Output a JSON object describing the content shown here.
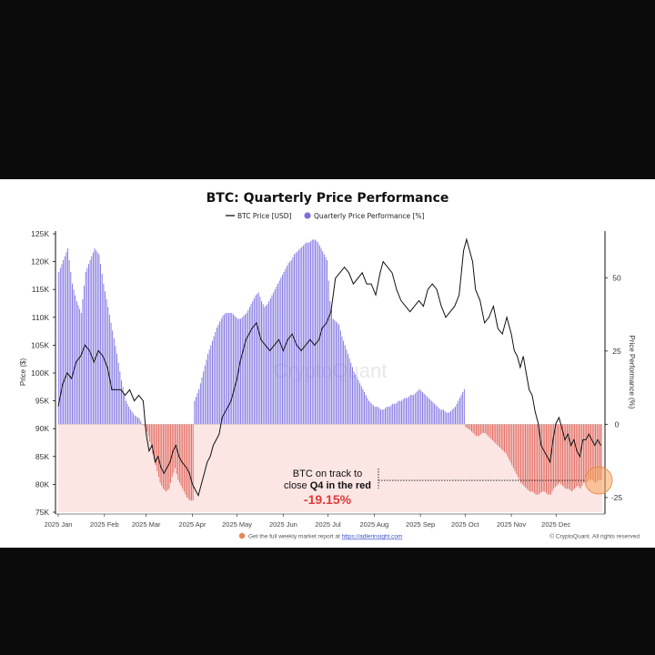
{
  "chart_data": {
    "type": "bar+line",
    "title": "BTC: Quarterly Price Performance",
    "legend": [
      {
        "label": "BTC Price [USD]",
        "kind": "line",
        "color": "#111111"
      },
      {
        "label": "Quarterly Price Performance [%]",
        "kind": "dot",
        "color": "#7b6fe0"
      }
    ],
    "legend_placement": "top-center",
    "ylabel_left": "Price ($)",
    "ylabel_right": "Price Performance (%)",
    "left_ticks": [
      "125K",
      "120K",
      "115K",
      "110K",
      "105K",
      "100K",
      "95K",
      "90K",
      "85K",
      "80K",
      "75K"
    ],
    "left_tick_values": [
      125,
      120,
      115,
      110,
      105,
      100,
      95,
      90,
      85,
      80,
      75
    ],
    "right_ticks": [
      "50",
      "25",
      "0",
      "-25"
    ],
    "right_tick_values": [
      50,
      25,
      0,
      -25
    ],
    "x_ticks": [
      "2025 Jan",
      "2025 Feb",
      "2025 Mar",
      "2025 Apr",
      "2025 May",
      "2025 Jun",
      "2025 Jul",
      "2025 Aug",
      "2025 Sep",
      "2025 Oct",
      "2025 Nov",
      "2025 Dec"
    ],
    "x_tick_days": [
      0,
      31,
      59,
      90,
      120,
      151,
      181,
      212,
      243,
      273,
      304,
      334
    ],
    "days_total": 365,
    "ylim_left": [
      75,
      125
    ],
    "ylim_right": [
      -30,
      65
    ],
    "price_keypoints": [
      [
        0,
        94
      ],
      [
        3,
        98
      ],
      [
        6,
        100
      ],
      [
        9,
        99
      ],
      [
        12,
        102
      ],
      [
        15,
        103
      ],
      [
        18,
        105
      ],
      [
        21,
        104
      ],
      [
        24,
        102
      ],
      [
        27,
        104
      ],
      [
        30,
        103
      ],
      [
        33,
        101
      ],
      [
        36,
        97
      ],
      [
        39,
        97
      ],
      [
        42,
        97
      ],
      [
        45,
        96
      ],
      [
        48,
        97
      ],
      [
        51,
        95
      ],
      [
        54,
        96
      ],
      [
        57,
        95
      ],
      [
        59,
        89
      ],
      [
        61,
        86
      ],
      [
        63,
        87
      ],
      [
        65,
        84
      ],
      [
        67,
        85
      ],
      [
        69,
        83
      ],
      [
        71,
        82
      ],
      [
        73,
        83
      ],
      [
        75,
        84
      ],
      [
        77,
        86
      ],
      [
        79,
        87
      ],
      [
        81,
        85
      ],
      [
        83,
        84
      ],
      [
        86,
        83
      ],
      [
        88,
        82
      ],
      [
        90,
        80
      ],
      [
        92,
        79
      ],
      [
        94,
        78
      ],
      [
        96,
        80
      ],
      [
        98,
        82
      ],
      [
        100,
        84
      ],
      [
        102,
        85
      ],
      [
        104,
        87
      ],
      [
        106,
        88
      ],
      [
        108,
        89
      ],
      [
        110,
        92
      ],
      [
        112,
        93
      ],
      [
        114,
        94
      ],
      [
        116,
        95
      ],
      [
        118,
        97
      ],
      [
        120,
        99
      ],
      [
        122,
        102
      ],
      [
        124,
        104
      ],
      [
        126,
        106
      ],
      [
        128,
        107
      ],
      [
        130,
        108
      ],
      [
        133,
        109
      ],
      [
        136,
        106
      ],
      [
        139,
        105
      ],
      [
        142,
        104
      ],
      [
        145,
        105
      ],
      [
        148,
        106
      ],
      [
        151,
        104
      ],
      [
        154,
        106
      ],
      [
        157,
        107
      ],
      [
        160,
        105
      ],
      [
        163,
        104
      ],
      [
        166,
        105
      ],
      [
        169,
        106
      ],
      [
        172,
        105
      ],
      [
        175,
        106
      ],
      [
        177,
        108
      ],
      [
        180,
        109
      ],
      [
        183,
        111
      ],
      [
        186,
        117
      ],
      [
        189,
        118
      ],
      [
        192,
        119
      ],
      [
        195,
        118
      ],
      [
        198,
        116
      ],
      [
        201,
        117
      ],
      [
        204,
        118
      ],
      [
        207,
        116
      ],
      [
        210,
        116
      ],
      [
        213,
        114
      ],
      [
        216,
        118
      ],
      [
        218,
        120
      ],
      [
        221,
        119
      ],
      [
        224,
        118
      ],
      [
        227,
        115
      ],
      [
        230,
        113
      ],
      [
        233,
        112
      ],
      [
        236,
        111
      ],
      [
        239,
        112
      ],
      [
        242,
        113
      ],
      [
        245,
        112
      ],
      [
        248,
        115
      ],
      [
        251,
        116
      ],
      [
        254,
        115
      ],
      [
        257,
        112
      ],
      [
        260,
        110
      ],
      [
        263,
        111
      ],
      [
        266,
        112
      ],
      [
        269,
        114
      ],
      [
        272,
        122
      ],
      [
        274,
        124
      ],
      [
        276,
        122
      ],
      [
        278,
        120
      ],
      [
        280,
        115
      ],
      [
        283,
        113
      ],
      [
        286,
        109
      ],
      [
        289,
        110
      ],
      [
        292,
        112
      ],
      [
        295,
        108
      ],
      [
        298,
        107
      ],
      [
        301,
        110
      ],
      [
        304,
        107
      ],
      [
        306,
        104
      ],
      [
        308,
        103
      ],
      [
        310,
        101
      ],
      [
        312,
        103
      ],
      [
        314,
        100
      ],
      [
        316,
        97
      ],
      [
        318,
        96
      ],
      [
        320,
        93
      ],
      [
        322,
        91
      ],
      [
        324,
        87
      ],
      [
        326,
        86
      ],
      [
        328,
        85
      ],
      [
        330,
        84
      ],
      [
        332,
        88
      ],
      [
        334,
        91
      ],
      [
        336,
        92
      ],
      [
        338,
        90
      ],
      [
        340,
        88
      ],
      [
        342,
        89
      ],
      [
        344,
        87
      ],
      [
        346,
        88
      ],
      [
        348,
        86
      ],
      [
        350,
        85
      ],
      [
        352,
        88
      ],
      [
        354,
        88
      ],
      [
        356,
        89
      ],
      [
        358,
        88
      ],
      [
        360,
        87
      ],
      [
        362,
        88
      ],
      [
        364,
        87
      ]
    ],
    "performance_keypoints": [
      [
        0,
        52
      ],
      [
        3,
        56
      ],
      [
        6,
        60
      ],
      [
        9,
        48
      ],
      [
        12,
        42
      ],
      [
        15,
        38
      ],
      [
        18,
        52
      ],
      [
        21,
        56
      ],
      [
        24,
        60
      ],
      [
        27,
        58
      ],
      [
        30,
        48
      ],
      [
        33,
        40
      ],
      [
        36,
        32
      ],
      [
        39,
        24
      ],
      [
        42,
        15
      ],
      [
        45,
        8
      ],
      [
        48,
        5
      ],
      [
        51,
        3
      ],
      [
        54,
        2
      ],
      [
        56,
        0
      ],
      [
        58,
        -1
      ],
      [
        60,
        -4
      ],
      [
        62,
        -8
      ],
      [
        64,
        -12
      ],
      [
        66,
        -16
      ],
      [
        68,
        -20
      ],
      [
        70,
        -22
      ],
      [
        72,
        -23
      ],
      [
        74,
        -22
      ],
      [
        76,
        -18
      ],
      [
        78,
        -15
      ],
      [
        80,
        -19
      ],
      [
        82,
        -21
      ],
      [
        84,
        -23
      ],
      [
        86,
        -25
      ],
      [
        88,
        -26
      ],
      [
        90,
        -26
      ],
      [
        91,
        8
      ],
      [
        94,
        12
      ],
      [
        96,
        16
      ],
      [
        98,
        20
      ],
      [
        100,
        24
      ],
      [
        102,
        27
      ],
      [
        104,
        30
      ],
      [
        106,
        33
      ],
      [
        108,
        35
      ],
      [
        110,
        37
      ],
      [
        112,
        38
      ],
      [
        114,
        38
      ],
      [
        116,
        38
      ],
      [
        118,
        37
      ],
      [
        120,
        36
      ],
      [
        122,
        36
      ],
      [
        124,
        37
      ],
      [
        126,
        38
      ],
      [
        128,
        40
      ],
      [
        130,
        42
      ],
      [
        132,
        44
      ],
      [
        134,
        45
      ],
      [
        136,
        42
      ],
      [
        138,
        40
      ],
      [
        140,
        41
      ],
      [
        142,
        43
      ],
      [
        144,
        45
      ],
      [
        146,
        47
      ],
      [
        148,
        49
      ],
      [
        150,
        51
      ],
      [
        152,
        53
      ],
      [
        154,
        55
      ],
      [
        156,
        56
      ],
      [
        158,
        58
      ],
      [
        160,
        59
      ],
      [
        162,
        60
      ],
      [
        164,
        61
      ],
      [
        166,
        62
      ],
      [
        168,
        62
      ],
      [
        170,
        63
      ],
      [
        172,
        63
      ],
      [
        174,
        62
      ],
      [
        176,
        60
      ],
      [
        178,
        58
      ],
      [
        180,
        56
      ],
      [
        182,
        42
      ],
      [
        184,
        36
      ],
      [
        186,
        35
      ],
      [
        188,
        34
      ],
      [
        190,
        30
      ],
      [
        192,
        27
      ],
      [
        194,
        24
      ],
      [
        196,
        21
      ],
      [
        198,
        18
      ],
      [
        200,
        16
      ],
      [
        202,
        14
      ],
      [
        204,
        12
      ],
      [
        206,
        10
      ],
      [
        208,
        8
      ],
      [
        210,
        7
      ],
      [
        212,
        6
      ],
      [
        214,
        6
      ],
      [
        216,
        5
      ],
      [
        218,
        5
      ],
      [
        220,
        6
      ],
      [
        222,
        6
      ],
      [
        224,
        7
      ],
      [
        226,
        7
      ],
      [
        228,
        8
      ],
      [
        230,
        8
      ],
      [
        232,
        9
      ],
      [
        234,
        9
      ],
      [
        236,
        10
      ],
      [
        238,
        10
      ],
      [
        240,
        11
      ],
      [
        242,
        12
      ],
      [
        244,
        11
      ],
      [
        246,
        10
      ],
      [
        248,
        9
      ],
      [
        250,
        8
      ],
      [
        252,
        7
      ],
      [
        254,
        6
      ],
      [
        256,
        5
      ],
      [
        258,
        5
      ],
      [
        260,
        4
      ],
      [
        262,
        4
      ],
      [
        264,
        5
      ],
      [
        266,
        6
      ],
      [
        268,
        8
      ],
      [
        270,
        10
      ],
      [
        272,
        12
      ],
      [
        273,
        -1
      ],
      [
        276,
        -2
      ],
      [
        278,
        -3
      ],
      [
        280,
        -4
      ],
      [
        282,
        -4
      ],
      [
        284,
        -3
      ],
      [
        286,
        -3
      ],
      [
        288,
        -4
      ],
      [
        290,
        -5
      ],
      [
        292,
        -6
      ],
      [
        294,
        -7
      ],
      [
        296,
        -8
      ],
      [
        298,
        -9
      ],
      [
        300,
        -10
      ],
      [
        302,
        -12
      ],
      [
        304,
        -14
      ],
      [
        306,
        -16
      ],
      [
        308,
        -18
      ],
      [
        310,
        -20
      ],
      [
        312,
        -21
      ],
      [
        314,
        -22
      ],
      [
        316,
        -23
      ],
      [
        318,
        -23
      ],
      [
        320,
        -24
      ],
      [
        322,
        -24
      ],
      [
        324,
        -23
      ],
      [
        326,
        -23
      ],
      [
        328,
        -24
      ],
      [
        330,
        -24
      ],
      [
        332,
        -22
      ],
      [
        334,
        -21
      ],
      [
        336,
        -20
      ],
      [
        338,
        -21
      ],
      [
        340,
        -22
      ],
      [
        342,
        -22
      ],
      [
        344,
        -23
      ],
      [
        346,
        -22
      ],
      [
        348,
        -21
      ],
      [
        350,
        -22
      ],
      [
        352,
        -20
      ],
      [
        354,
        -20
      ],
      [
        356,
        -19
      ],
      [
        358,
        -19
      ],
      [
        360,
        -20
      ],
      [
        362,
        -19
      ],
      [
        364,
        -19
      ]
    ],
    "positive_color": "#7b6fe0",
    "negative_color": "#e0645a",
    "negative_zone_color": "#fbe6e4",
    "annotation": {
      "line1": "BTC on track to",
      "line2_prefix": "close ",
      "line2_bold": "Q4 in the red",
      "value": "-19.15%",
      "value_numeric": -19.15
    },
    "watermark": "CryptoQuant",
    "highlight_color": "#f5a35c"
  },
  "footer": {
    "cta_text": "Get the full weekly market report at ",
    "cta_link": "https://adlerinsight.com",
    "credit": "© CryptoQuant. All rights reserved"
  }
}
